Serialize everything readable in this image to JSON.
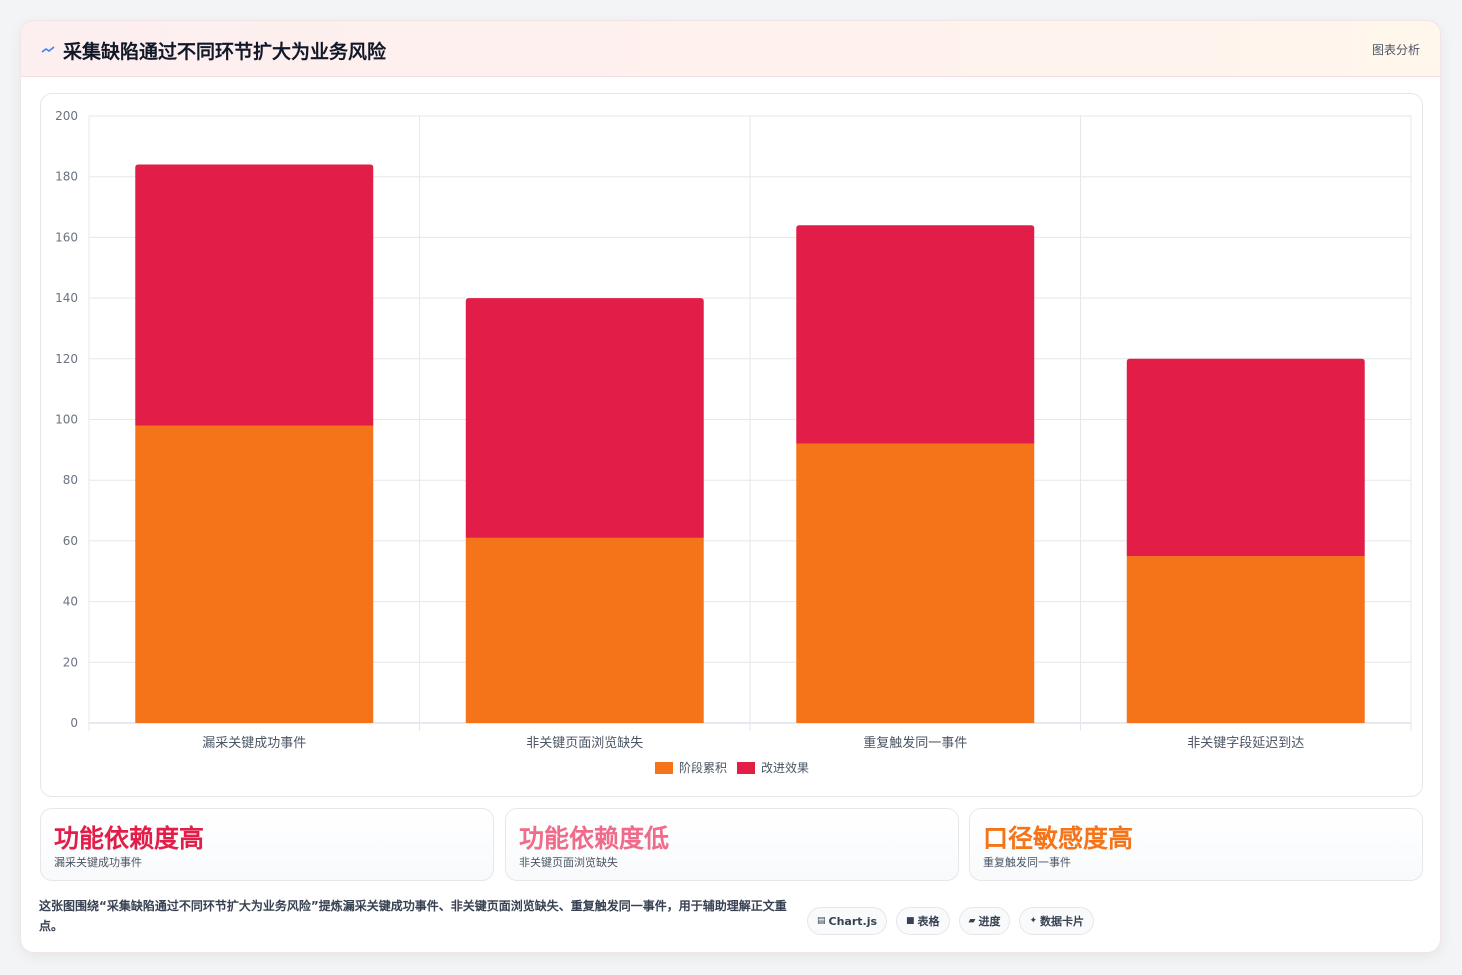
{
  "header": {
    "title": "采集缺陷通过不同环节扩大为业务风险",
    "tag": "图表分析"
  },
  "chart_data": {
    "type": "bar",
    "stacked": true,
    "categories": [
      "漏采关键成功事件",
      "非关键页面浏览缺失",
      "重复触发同一事件",
      "非关键字段延迟到达"
    ],
    "series": [
      {
        "name": "阶段累积",
        "values": [
          98,
          61,
          92,
          55
        ],
        "color": "#f57419"
      },
      {
        "name": "改进效果",
        "values": [
          86,
          79,
          72,
          65
        ],
        "color": "#e11d48"
      }
    ],
    "ylim": [
      0,
      200
    ],
    "yticks": [
      0,
      20,
      40,
      60,
      80,
      100,
      120,
      140,
      160,
      180,
      200
    ],
    "grid": true,
    "legend_position": "bottom"
  },
  "stats": [
    {
      "value": "功能依赖度高",
      "label": "漏采关键成功事件",
      "color": "#e11d48"
    },
    {
      "value": "功能依赖度低",
      "label": "非关键页面浏览缺失",
      "color": "#f06b8a"
    },
    {
      "value": "口径敏感度高",
      "label": "重复触发同一事件",
      "color": "#f57419"
    }
  ],
  "footer": {
    "description": "这张图围绕“采集缺陷通过不同环节扩大为业务风险”提炼漏采关键成功事件、非关键页面浏览缺失、重复触发同一事件，用于辅助理解正文重点。",
    "chips": [
      {
        "icon": "chart-icon",
        "glyph": "▤",
        "label": "Chart.js"
      },
      {
        "icon": "table-icon",
        "glyph": "■",
        "label": "表格"
      },
      {
        "icon": "progress-icon",
        "glyph": "▰",
        "label": "进度"
      },
      {
        "icon": "sparkle-icon",
        "glyph": "✦",
        "label": "数据卡片"
      }
    ]
  }
}
